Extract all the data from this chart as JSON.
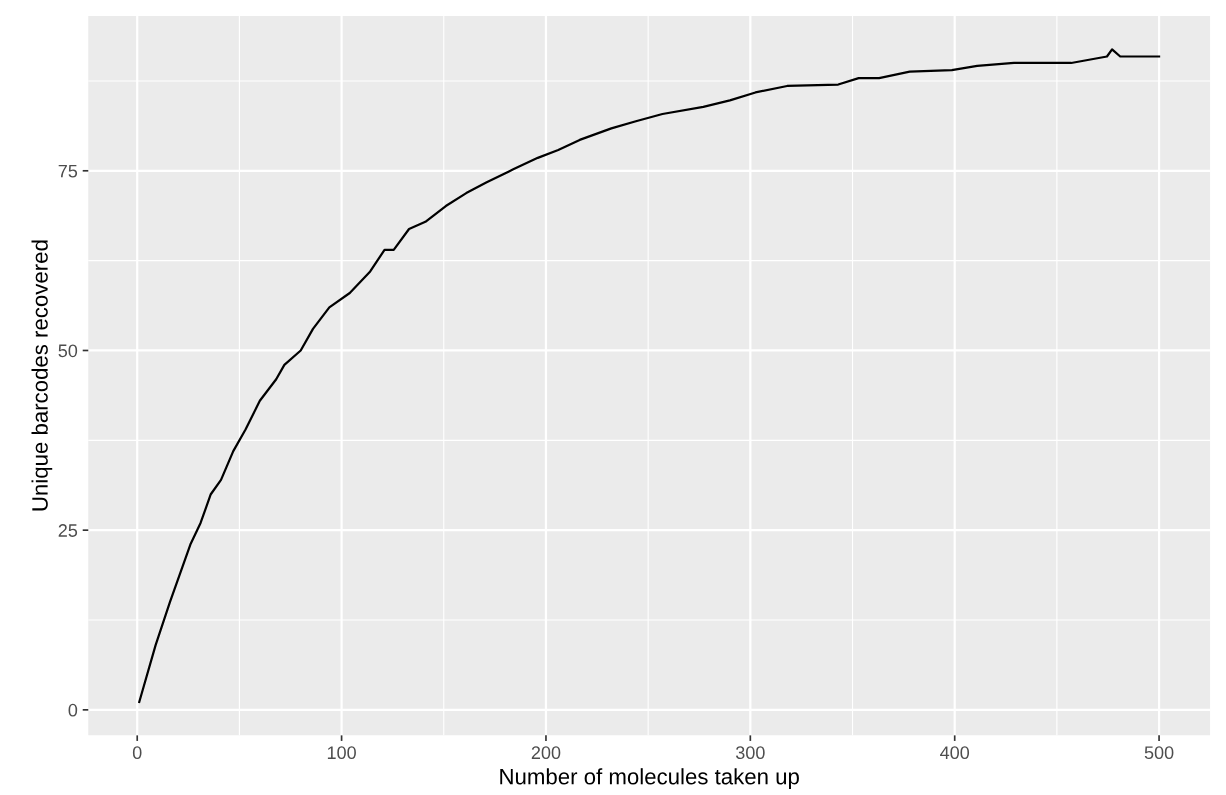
{
  "chart_data": {
    "type": "line",
    "xlabel": "Number of molecules taken up",
    "ylabel": "Unique barcodes recovered",
    "x": [
      1,
      9,
      16,
      21,
      26,
      31,
      36,
      41,
      47,
      53,
      60,
      68,
      72,
      80,
      86,
      94,
      104,
      114,
      121,
      125.5,
      133,
      141,
      151,
      161,
      171,
      184,
      196,
      206,
      216.5,
      232,
      244,
      257,
      277,
      290,
      302.5,
      318,
      343,
      353,
      363,
      378,
      398.6,
      411,
      429,
      457,
      474.5,
      477,
      481,
      500
    ],
    "series": [
      {
        "color": "#000000",
        "values": [
          1.1,
          9,
          15,
          19,
          23,
          26,
          30,
          32,
          36,
          39,
          43,
          46,
          48,
          50,
          53,
          56,
          58,
          61,
          64,
          64,
          66.9,
          67.9,
          70.1,
          71.9,
          73.4,
          75.2,
          76.8,
          77.9,
          79.3,
          80.9,
          81.9,
          82.9,
          83.9,
          84.8,
          85.9,
          86.8,
          87,
          87.9,
          87.9,
          88.8,
          89,
          89.6,
          90,
          90,
          90.9,
          91.9,
          90.9,
          90.9
        ]
      }
    ],
    "xlim": [
      -23.95,
      524.95
    ],
    "ylim": [
      -3.55,
      96.55
    ],
    "xticks": [
      0,
      100,
      200,
      300,
      400,
      500
    ],
    "yticks": [
      0,
      25,
      50,
      75
    ],
    "grid": true,
    "legend": false
  }
}
